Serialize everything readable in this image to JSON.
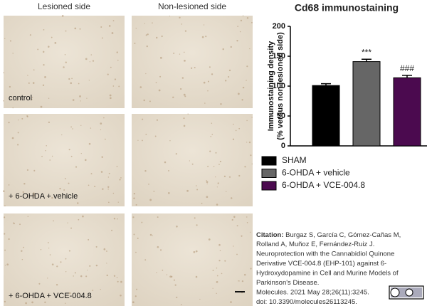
{
  "panels": {
    "columns": [
      "Lesioned side",
      "Non-lesioned side"
    ],
    "rows": [
      "control",
      "+ 6-OHDA + vehicle",
      "+ 6-OHDA + VCE-004.8"
    ]
  },
  "chart_data": {
    "type": "bar",
    "title": "Cd68 immunostaining",
    "y_label": [
      "Immunostaining density",
      "(% versus non lesioned side)"
    ],
    "categories": [
      "SHAM",
      "6-OHDA + vehicle",
      "6-OHDA + VCE-004.8"
    ],
    "values": [
      101,
      141,
      114
    ],
    "errors": [
      3,
      4,
      4
    ],
    "colors": [
      "#000000",
      "#666666",
      "#4b0a4f"
    ],
    "value_annotations": [
      null,
      "***",
      "###"
    ],
    "ylim": [
      0,
      200
    ],
    "yticks": [
      0,
      50,
      100,
      150,
      200
    ],
    "grid": false
  },
  "citation": {
    "label": "Citation:",
    "lines": [
      " Burgaz S, García C, Gómez-Cañas M,",
      "Rolland A, Muñoz E, Fernández-Ruiz J.",
      "Neuroprotection with the Cannabidiol Quinone",
      "Derivative VCE-004.8 (EHP-101) against 6-",
      "Hydroxydopamine in Cell and Murine Models of",
      "Parkinson's Disease.",
      "Molecules. 2021 May 28;26(11):3245.",
      "doi: 10.3390/molecules26113245."
    ]
  }
}
